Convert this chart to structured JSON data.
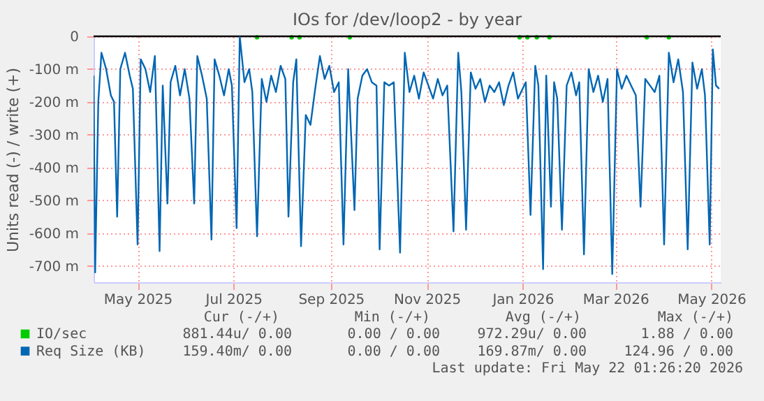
{
  "chart_data": {
    "type": "line",
    "title": "IOs for /dev/loop2 - by year",
    "ylabel": "Units read (-) / write (+)",
    "xlim": [
      "2025-04-18",
      "2026-05-22"
    ],
    "xticks": [
      {
        "value": "2025-05-16",
        "label": "May 2025"
      },
      {
        "value": "2025-07-16",
        "label": "Jul 2025"
      },
      {
        "value": "2025-09-16",
        "label": "Sep 2025"
      },
      {
        "value": "2025-11-16",
        "label": "Nov 2025"
      },
      {
        "value": "2026-01-16",
        "label": "Jan 2026"
      },
      {
        "value": "2026-03-16",
        "label": "Mar 2026"
      },
      {
        "value": "2026-05-16",
        "label": "May 2026"
      }
    ],
    "ylim": [
      -750,
      0
    ],
    "yticks": [
      0,
      {
        "value": -100,
        "label": "-100 m"
      },
      {
        "value": -200,
        "label": "-200 m"
      },
      {
        "value": -300,
        "label": "-300 m"
      },
      {
        "value": -400,
        "label": "-400 m"
      },
      {
        "value": -500,
        "label": "-500 m"
      },
      {
        "value": -600,
        "label": "-600 m"
      },
      {
        "value": -700,
        "label": "-700 m"
      }
    ],
    "grid": true,
    "legend": "bottom",
    "ref_lines": [
      {
        "axis": "y",
        "value": 0,
        "label": null,
        "color": "#000000"
      }
    ],
    "series": [
      {
        "name": "IO/sec",
        "color": "#00cc00",
        "type": "scatter",
        "marker": "circle",
        "x": [
          "2025-07-31",
          "2025-08-22",
          "2025-08-27",
          "2025-09-28",
          "2026-01-14",
          "2026-01-19",
          "2026-01-25",
          "2026-02-02",
          "2026-04-05",
          "2026-04-19"
        ],
        "values": [
          -3,
          -3,
          -3,
          -3,
          -3,
          -3,
          -3,
          -3,
          -3,
          -3
        ]
      },
      {
        "name": "Req Size (KB)",
        "color": "#0066b3",
        "x": [
          "2025-04-18",
          "2025-04-19",
          "2025-04-21",
          "2025-04-23",
          "2025-04-26",
          "2025-04-29",
          "2025-05-01",
          "2025-05-03",
          "2025-05-05",
          "2025-05-08",
          "2025-05-11",
          "2025-05-13",
          "2025-05-16",
          "2025-05-18",
          "2025-05-21",
          "2025-05-24",
          "2025-05-27",
          "2025-05-30",
          "2025-06-01",
          "2025-06-04",
          "2025-06-06",
          "2025-06-09",
          "2025-06-12",
          "2025-06-15",
          "2025-06-18",
          "2025-06-21",
          "2025-06-23",
          "2025-06-26",
          "2025-06-29",
          "2025-07-02",
          "2025-07-04",
          "2025-07-07",
          "2025-07-10",
          "2025-07-13",
          "2025-07-15",
          "2025-07-18",
          "2025-07-20",
          "2025-07-23",
          "2025-07-26",
          "2025-07-28",
          "2025-07-31",
          "2025-08-03",
          "2025-08-06",
          "2025-08-09",
          "2025-08-12",
          "2025-08-15",
          "2025-08-18",
          "2025-08-20",
          "2025-08-23",
          "2025-08-25",
          "2025-08-28",
          "2025-08-31",
          "2025-09-03",
          "2025-09-06",
          "2025-09-09",
          "2025-09-12",
          "2025-09-15",
          "2025-09-18",
          "2025-09-21",
          "2025-09-24",
          "2025-09-27",
          "2025-10-01",
          "2025-10-03",
          "2025-10-06",
          "2025-10-09",
          "2025-10-12",
          "2025-10-15",
          "2025-10-17",
          "2025-10-20",
          "2025-10-23",
          "2025-10-26",
          "2025-10-30",
          "2025-11-02",
          "2025-11-05",
          "2025-11-08",
          "2025-11-11",
          "2025-11-14",
          "2025-11-17",
          "2025-11-20",
          "2025-11-23",
          "2025-11-26",
          "2025-11-29",
          "2025-12-03",
          "2025-12-06",
          "2025-12-08",
          "2025-12-11",
          "2025-12-14",
          "2025-12-17",
          "2025-12-20",
          "2025-12-23",
          "2025-12-26",
          "2025-12-29",
          "2026-01-01",
          "2026-01-04",
          "2026-01-07",
          "2026-01-10",
          "2026-01-13",
          "2026-01-16",
          "2026-01-18",
          "2026-01-21",
          "2026-01-24",
          "2026-01-26",
          "2026-01-29",
          "2026-01-31",
          "2026-02-03",
          "2026-02-05",
          "2026-02-07",
          "2026-02-10",
          "2026-02-13",
          "2026-02-16",
          "2026-02-19",
          "2026-02-21",
          "2026-02-24",
          "2026-02-27",
          "2026-03-02",
          "2026-03-05",
          "2026-03-08",
          "2026-03-11",
          "2026-03-14",
          "2026-03-17",
          "2026-03-20",
          "2026-03-23",
          "2026-03-26",
          "2026-03-29",
          "2026-04-01",
          "2026-04-04",
          "2026-04-07",
          "2026-04-10",
          "2026-04-13",
          "2026-04-16",
          "2026-04-19",
          "2026-04-22",
          "2026-04-25",
          "2026-04-28",
          "2026-05-01",
          "2026-05-04",
          "2026-05-07",
          "2026-05-10",
          "2026-05-12",
          "2026-05-15",
          "2026-05-17",
          "2026-05-19",
          "2026-05-21"
        ],
        "values": [
          -120,
          -720,
          -200,
          -50,
          -100,
          -180,
          -200,
          -550,
          -100,
          -50,
          -120,
          -160,
          -635,
          -70,
          -100,
          -170,
          -60,
          -655,
          -150,
          -510,
          -140,
          -90,
          -180,
          -100,
          -190,
          -510,
          -60,
          -120,
          -190,
          -620,
          -70,
          -120,
          -180,
          -100,
          -150,
          -585,
          0,
          -140,
          -100,
          -170,
          -610,
          -130,
          -200,
          -120,
          -170,
          -90,
          -130,
          -550,
          -140,
          -70,
          -640,
          -240,
          -270,
          -160,
          -60,
          -130,
          -90,
          -170,
          -140,
          -635,
          -100,
          -530,
          -190,
          -120,
          -100,
          -140,
          -150,
          -650,
          -140,
          -150,
          -140,
          -660,
          -50,
          -170,
          -120,
          -190,
          -110,
          -150,
          -190,
          -130,
          -180,
          -150,
          -595,
          -50,
          -170,
          -590,
          -110,
          -160,
          -130,
          -200,
          -150,
          -170,
          -140,
          -210,
          -150,
          -110,
          -190,
          -160,
          -140,
          -545,
          -90,
          -150,
          -710,
          -120,
          -520,
          -140,
          -190,
          -590,
          -150,
          -110,
          -180,
          -140,
          -665,
          -100,
          -170,
          -120,
          -200,
          -130,
          -725,
          -100,
          -160,
          -120,
          -150,
          -180,
          -520,
          -130,
          -150,
          -170,
          -120,
          -635,
          -50,
          -140,
          -70,
          -170,
          -650,
          -80,
          -160,
          -100,
          -180,
          -635,
          -40,
          -150,
          -160
        ]
      }
    ],
    "annotations": [
      "Cur (-/+)",
      "Min (-/+)",
      "Avg (-/+)",
      "Max (-/+)",
      "881.44u/  0.00",
      "0.00 /  0.00",
      "972.29u/  0.00",
      "1.88 /  0.00",
      "159.40m/  0.00",
      "0.00 /  0.00",
      "169.87m/  0.00",
      "124.96 /  0.00",
      "Last update: Fri May 22 01:26:20 2026"
    ]
  }
}
